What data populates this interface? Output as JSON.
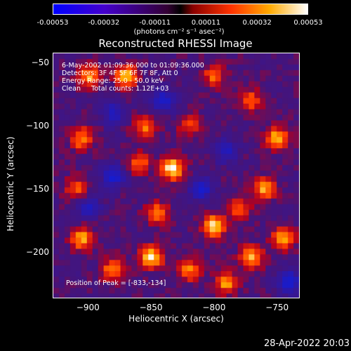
{
  "colorbar": {
    "ticks": [
      "-0.00053",
      "-0.00032",
      "-0.00011",
      "0.00011",
      "0.00032",
      "0.00053"
    ],
    "unit_label": "(photons cm⁻² s⁻¹ asec⁻²)"
  },
  "annotations": {
    "time_range": "6-May-2002 01:09:36.000 to 01:09:36.000",
    "detectors": "Detectors: 3F 4F 5F 6F 7F 8F, Att 0",
    "energy": "Energy Range: 25.0 - 50.0 keV",
    "clean": "Clean     Total counts: 1.12E+03",
    "peak": "Position of Peak = [-833,-134]"
  },
  "timestamp": "28-Apr-2022 20:03",
  "chart_data": {
    "type": "heatmap",
    "title": "Reconstructed RHESSI Image",
    "xlabel": "Heliocentric X (arcsec)",
    "ylabel": "Heliocentric Y (arcsec)",
    "xlim": [
      -928,
      -732
    ],
    "ylim": [
      -237,
      -42
    ],
    "x_ticks": [
      -900,
      -850,
      -800,
      -750
    ],
    "y_ticks": [
      -50,
      -100,
      -150,
      -200
    ],
    "x_tick_labels": [
      "−900",
      "−850",
      "−800",
      "−750"
    ],
    "y_tick_labels": [
      "−50",
      "−100",
      "−150",
      "−200"
    ],
    "colorscale_range": [
      -0.00053,
      0.00053
    ],
    "peak_position": [
      -833,
      -134
    ],
    "hotspots": [
      {
        "x": -833,
        "y": -134,
        "value": 0.00053
      },
      {
        "x": -900,
        "y": -60,
        "value": 0.0004
      },
      {
        "x": -870,
        "y": -60,
        "value": 0.00045
      },
      {
        "x": -905,
        "y": -110,
        "value": 0.00038
      },
      {
        "x": -855,
        "y": -100,
        "value": 0.00035
      },
      {
        "x": -860,
        "y": -130,
        "value": 0.00032
      },
      {
        "x": -910,
        "y": -150,
        "value": 0.0003
      },
      {
        "x": -845,
        "y": -170,
        "value": 0.00035
      },
      {
        "x": -800,
        "y": -180,
        "value": 0.00048
      },
      {
        "x": -780,
        "y": -165,
        "value": 0.0003
      },
      {
        "x": -750,
        "y": -110,
        "value": 0.00045
      },
      {
        "x": -760,
        "y": -150,
        "value": 0.0004
      },
      {
        "x": -745,
        "y": -190,
        "value": 0.00042
      },
      {
        "x": -770,
        "y": -205,
        "value": 0.00045
      },
      {
        "x": -905,
        "y": -190,
        "value": 0.0004
      },
      {
        "x": -880,
        "y": -215,
        "value": 0.00038
      },
      {
        "x": -850,
        "y": -205,
        "value": 0.0005
      },
      {
        "x": -820,
        "y": -215,
        "value": 0.00035
      },
      {
        "x": -790,
        "y": -225,
        "value": 0.00038
      },
      {
        "x": -800,
        "y": -60,
        "value": 0.0003
      },
      {
        "x": -770,
        "y": -80,
        "value": 0.0003
      },
      {
        "x": -820,
        "y": -100,
        "value": 0.00025
      },
      {
        "x": -790,
        "y": -120,
        "value": -0.0003
      },
      {
        "x": -840,
        "y": -80,
        "value": -0.00035
      },
      {
        "x": -880,
        "y": -140,
        "value": -0.0004
      },
      {
        "x": -810,
        "y": -150,
        "value": -0.00038
      },
      {
        "x": -900,
        "y": -165,
        "value": -0.0003
      },
      {
        "x": -740,
        "y": -225,
        "value": -0.00045
      },
      {
        "x": -880,
        "y": -90,
        "value": -0.0003
      }
    ]
  }
}
